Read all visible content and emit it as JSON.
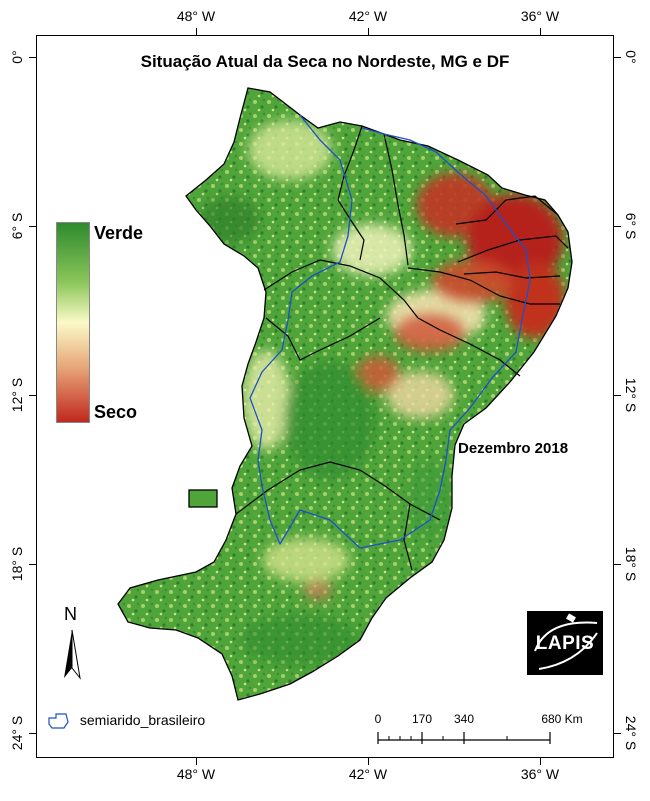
{
  "map": {
    "title": "Situação Atual da Seca no Nordeste, MG e DF",
    "date_label": "Dezembro 2018",
    "legend": {
      "high_label": "Verde",
      "low_label": "Seco",
      "high_color": "#2e8b2e",
      "mid_color": "#fafac8",
      "low_color": "#c0281e"
    },
    "semiarid_label": "semiarido_brasileiro",
    "longitude_labels": [
      "48° W",
      "42° W",
      "36° W"
    ],
    "latitude_labels": [
      "0°",
      "6° S",
      "12° S",
      "18° S",
      "24° S"
    ],
    "scale_labels": [
      "0",
      "170",
      "340",
      "680 Km"
    ],
    "north_label": "N",
    "logo_text": "LAPIS",
    "colors": {
      "state_border": "#000000",
      "semiarid_border": "#1e50c8",
      "drought_red": "#b4231e"
    }
  }
}
